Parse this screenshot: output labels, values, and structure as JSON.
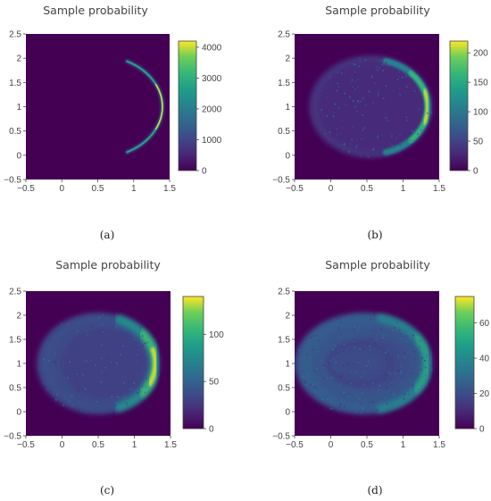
{
  "chart_data": [
    {
      "type": "heatmap",
      "panel_caption": "(a)",
      "title": "Sample probability",
      "xlabel": "",
      "ylabel": "",
      "x_ticks": [
        "−0.5",
        "0",
        "0.5",
        "1",
        "1.5"
      ],
      "y_ticks": [
        "−0.5",
        "0",
        "0.5",
        "1",
        "1.5",
        "2",
        "2.5"
      ],
      "xlim": [
        -0.5,
        1.5
      ],
      "ylim": [
        -0.5,
        2.5
      ],
      "colorbar": {
        "min": 0,
        "max": 4200,
        "ticks": [
          0,
          1000,
          2000,
          3000,
          4000
        ],
        "tick_labels": [
          "0",
          "1000",
          "2000",
          "3000",
          "4000"
        ]
      },
      "distribution": {
        "shape": "crescent arc",
        "center": [
          0.5,
          1.0
        ],
        "radius_x": 0.9,
        "radius_y": 1.05,
        "peak_x": 1.4,
        "peak_y": 1.0,
        "peak_value": 4200
      }
    },
    {
      "type": "heatmap",
      "panel_caption": "(b)",
      "title": "Sample probability",
      "xlabel": "",
      "ylabel": "",
      "x_ticks": [
        "−0.5",
        "0",
        "0.5",
        "1",
        "1.5"
      ],
      "y_ticks": [
        "−0.5",
        "0",
        "0.5",
        "1",
        "1.5",
        "2",
        "2.5"
      ],
      "xlim": [
        -0.5,
        1.5
      ],
      "ylim": [
        -0.5,
        2.5
      ],
      "colorbar": {
        "min": 0,
        "max": 220,
        "ticks": [
          0,
          50,
          100,
          150,
          200
        ],
        "tick_labels": [
          "0",
          "50",
          "100",
          "150",
          "200"
        ]
      },
      "distribution": {
        "shape": "ellipse with bright right rim",
        "center": [
          0.55,
          1.0
        ],
        "radius_x": 0.85,
        "radius_y": 1.05,
        "peak_x": 1.35,
        "peak_y": 1.0,
        "peak_value": 220
      }
    },
    {
      "type": "heatmap",
      "panel_caption": "(c)",
      "title": "Sample probability",
      "xlabel": "",
      "ylabel": "",
      "x_ticks": [
        "−0.5",
        "0",
        "0.5",
        "1",
        "1.5"
      ],
      "y_ticks": [
        "−0.5",
        "0",
        "0.5",
        "1",
        "1.5",
        "2",
        "2.5"
      ],
      "xlim": [
        -0.5,
        1.5
      ],
      "ylim": [
        -0.5,
        2.5
      ],
      "colorbar": {
        "min": 0,
        "max": 140,
        "ticks": [
          0,
          50,
          100
        ],
        "tick_labels": [
          "0",
          "50",
          "100"
        ]
      },
      "distribution": {
        "shape": "filled ellipse, brighter right side",
        "center": [
          0.5,
          1.0
        ],
        "radius_x": 0.85,
        "radius_y": 1.05,
        "peak_x": 1.3,
        "peak_y": 0.9,
        "peak_value": 140
      }
    },
    {
      "type": "heatmap",
      "panel_caption": "(d)",
      "title": "Sample probability",
      "xlabel": "",
      "ylabel": "",
      "x_ticks": [
        "−0.5",
        "0",
        "0.5",
        "1",
        "1.5"
      ],
      "y_ticks": [
        "−0.5",
        "0",
        "0.5",
        "1",
        "1.5",
        "2",
        "2.5"
      ],
      "xlim": [
        -0.5,
        1.5
      ],
      "ylim": [
        -0.5,
        2.5
      ],
      "colorbar": {
        "min": 0,
        "max": 75,
        "ticks": [
          0,
          20,
          40,
          60
        ],
        "tick_labels": [
          "0",
          "20",
          "40",
          "60"
        ]
      },
      "distribution": {
        "shape": "broad noisy ellipse",
        "center": [
          0.45,
          1.0
        ],
        "radius_x": 0.95,
        "radius_y": 1.05,
        "peak_x": 1.2,
        "peak_y": 1.0,
        "peak_value": 75
      }
    }
  ],
  "colors": {
    "background_dark": "#440154",
    "colormap": "viridis",
    "axis_text": "#444444"
  }
}
